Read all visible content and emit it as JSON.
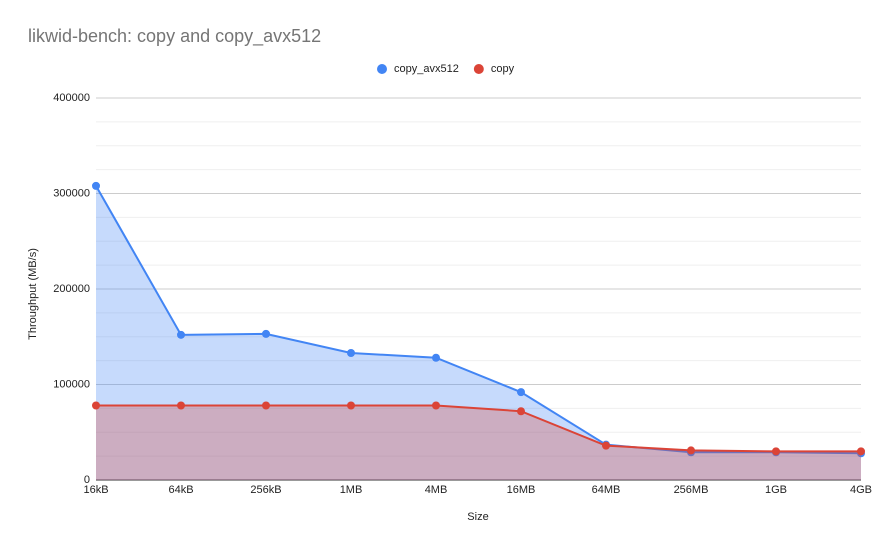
{
  "chart_data": {
    "type": "area",
    "title": "likwid-bench: copy and copy_avx512",
    "x_label": "Size",
    "y_label": "Throughput (MB/s)",
    "categories": [
      "16kB",
      "64kB",
      "256kB",
      "1MB",
      "4MB",
      "16MB",
      "64MB",
      "256MB",
      "1GB",
      "4GB"
    ],
    "series": [
      {
        "name": "copy_avx512",
        "color": "#4285f4",
        "values": [
          308000,
          152000,
          153000,
          133000,
          128000,
          92000,
          37000,
          29000,
          29000,
          28000
        ]
      },
      {
        "name": "copy",
        "color": "#db4437",
        "values": [
          78000,
          78000,
          78000,
          78000,
          78000,
          72000,
          36000,
          31000,
          30000,
          30000
        ]
      }
    ],
    "ylim": [
      0,
      400000
    ],
    "yticks": [
      0,
      100000,
      200000,
      300000,
      400000
    ],
    "minor_yticks": [
      25000,
      50000,
      75000,
      125000,
      150000,
      175000,
      225000,
      250000,
      275000,
      325000,
      350000,
      375000
    ],
    "grid": true,
    "legend": "top"
  }
}
